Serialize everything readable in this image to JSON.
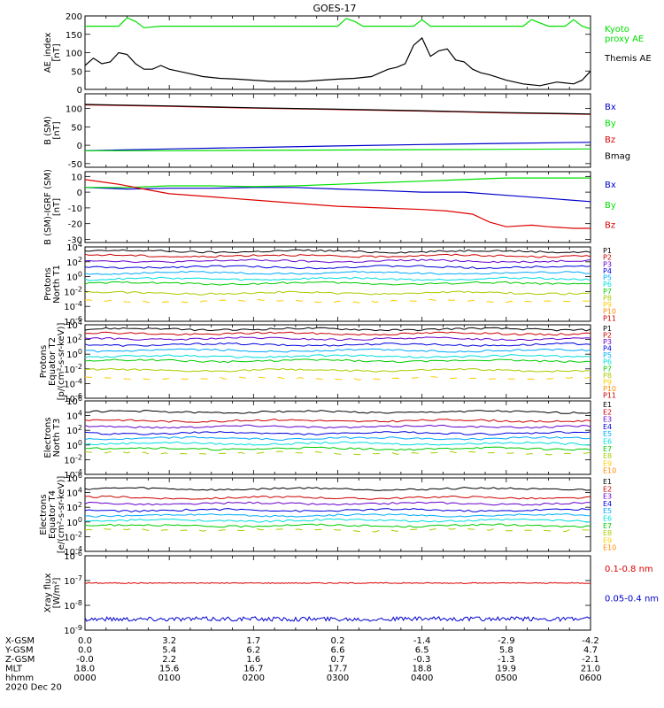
{
  "title": "GOES-17",
  "colors": {
    "black": "#000000",
    "green": "#00e000",
    "blue": "#0000cc",
    "red": "#dd0000",
    "levels": [
      "#000000",
      "#cc0000",
      "#6600cc",
      "#0000dd",
      "#00aaff",
      "#00dddd",
      "#00cc00",
      "#aacc00",
      "#ffcc00",
      "#ff8800",
      "#cc0000"
    ]
  },
  "chart_data": [
    {
      "type": "line",
      "id": "ae",
      "ylabel": "AE_index\n[nT]",
      "ylim": [
        0,
        200
      ],
      "yscale": "linear",
      "yticks": [
        "200",
        "150",
        "100",
        "50",
        "0"
      ],
      "legend": [
        {
          "label": "Kyoto\nproxy AE",
          "color": "#00e000"
        },
        {
          "label": "Themis AE",
          "color": "#000000"
        }
      ],
      "series": [
        {
          "name": "Kyoto proxy AE",
          "color": "#00e000",
          "x": [
            0,
            0.2,
            0.4,
            0.5,
            0.6,
            0.7,
            0.9,
            1.0,
            1.2,
            1.4,
            1.6,
            1.8,
            2.0,
            2.2,
            2.4,
            2.6,
            2.8,
            3.0,
            3.1,
            3.2,
            3.3,
            3.5,
            3.7,
            3.9,
            4.0,
            4.1,
            4.2,
            4.4,
            4.6,
            4.8,
            5.0,
            5.2,
            5.3,
            5.5,
            5.7,
            5.8,
            5.9,
            6.0
          ],
          "y": [
            172,
            172,
            172,
            195,
            185,
            168,
            172,
            172,
            172,
            172,
            172,
            172,
            172,
            172,
            172,
            172,
            172,
            172,
            193,
            185,
            172,
            172,
            172,
            172,
            190,
            172,
            172,
            172,
            172,
            172,
            172,
            172,
            190,
            172,
            172,
            190,
            172,
            165
          ]
        },
        {
          "name": "Themis AE",
          "color": "#000000",
          "x": [
            0,
            0.1,
            0.2,
            0.3,
            0.4,
            0.5,
            0.6,
            0.7,
            0.8,
            0.9,
            1.0,
            1.2,
            1.4,
            1.6,
            1.8,
            2.0,
            2.2,
            2.4,
            2.6,
            2.8,
            3.0,
            3.2,
            3.4,
            3.5,
            3.6,
            3.7,
            3.8,
            3.9,
            4.0,
            4.1,
            4.2,
            4.3,
            4.4,
            4.5,
            4.6,
            4.7,
            4.8,
            5.0,
            5.2,
            5.4,
            5.6,
            5.8,
            5.9,
            6.0
          ],
          "y": [
            65,
            85,
            70,
            75,
            100,
            95,
            70,
            55,
            55,
            65,
            55,
            45,
            35,
            30,
            28,
            25,
            22,
            22,
            22,
            25,
            28,
            30,
            35,
            45,
            55,
            60,
            70,
            120,
            140,
            90,
            105,
            110,
            80,
            75,
            55,
            45,
            40,
            25,
            15,
            10,
            20,
            15,
            25,
            50
          ]
        }
      ]
    },
    {
      "type": "line",
      "id": "bsm",
      "ylabel": "B (SM)\n[nT]",
      "ylim": [
        -60,
        140
      ],
      "yscale": "linear",
      "yticks": [
        "100",
        "50",
        "0",
        "-50"
      ],
      "legend": [
        {
          "label": "Bx",
          "color": "#0000cc"
        },
        {
          "label": "By",
          "color": "#00e000"
        },
        {
          "label": "Bz",
          "color": "#dd0000"
        },
        {
          "label": "Bmag",
          "color": "#000000"
        }
      ],
      "series": [
        {
          "name": "Bx",
          "color": "#0000cc",
          "x": [
            0,
            1,
            2,
            3,
            4,
            5,
            6
          ],
          "y": [
            -15,
            -10,
            -6,
            -2,
            2,
            5,
            8
          ]
        },
        {
          "name": "By",
          "color": "#00e000",
          "x": [
            0,
            1,
            2,
            3,
            4,
            5,
            6
          ],
          "y": [
            -15,
            -15,
            -14,
            -13,
            -12,
            -11,
            -10
          ]
        },
        {
          "name": "Bz",
          "color": "#dd0000",
          "x": [
            0,
            1,
            2,
            3,
            4,
            5,
            6
          ],
          "y": [
            110,
            106,
            101,
            97,
            93,
            88,
            84
          ]
        },
        {
          "name": "Bmag",
          "color": "#000000",
          "x": [
            0,
            1,
            2,
            3,
            4,
            5,
            6
          ],
          "y": [
            111,
            107,
            102,
            98,
            94,
            89,
            85
          ]
        }
      ]
    },
    {
      "type": "line",
      "id": "bigrf",
      "ylabel": "B (SM)-IGRF (SM)\n[nT]",
      "ylim": [
        -32,
        13
      ],
      "yscale": "linear",
      "yticks": [
        "10",
        "0",
        "-10",
        "-20",
        "-30"
      ],
      "legend": [
        {
          "label": "Bx",
          "color": "#0000cc"
        },
        {
          "label": "By",
          "color": "#00e000"
        },
        {
          "label": "Bz",
          "color": "#dd0000"
        }
      ],
      "series": [
        {
          "name": "Bx",
          "color": "#0000cc",
          "x": [
            0,
            0.5,
            1,
            1.5,
            2,
            2.5,
            3,
            3.5,
            4,
            4.5,
            5,
            5.5,
            6
          ],
          "y": [
            3,
            2,
            2.5,
            2.5,
            3,
            3,
            2,
            1,
            0,
            0,
            -2,
            -4,
            -6
          ]
        },
        {
          "name": "By",
          "color": "#00e000",
          "x": [
            0,
            0.5,
            1,
            1.5,
            2,
            2.5,
            3,
            3.5,
            4,
            4.5,
            5,
            5.5,
            6
          ],
          "y": [
            3,
            3,
            4,
            4,
            3.5,
            4,
            5,
            6,
            7,
            8,
            9,
            9,
            9
          ]
        },
        {
          "name": "Bz",
          "color": "#dd0000",
          "x": [
            0,
            0.4,
            0.7,
            1,
            1.5,
            2,
            2.5,
            3,
            3.5,
            4,
            4.3,
            4.6,
            4.8,
            5,
            5.3,
            5.5,
            5.8,
            6
          ],
          "y": [
            8,
            5,
            2,
            -1,
            -3,
            -5,
            -7,
            -9,
            -10,
            -11,
            -12,
            -14,
            -19,
            -22,
            -21,
            -22,
            -23,
            -23
          ]
        }
      ]
    },
    {
      "type": "line",
      "id": "protons_t1",
      "ylabel": "Protons\nNorth T1",
      "yscale": "log",
      "ylim_exp": [
        -6,
        4
      ],
      "yticks": [
        "10^4",
        "10^2",
        "10^0",
        "10^-2",
        "10^-4",
        "10^-6"
      ],
      "legend": [
        "P1",
        "P2",
        "P3",
        "P4",
        "P5",
        "P6",
        "P7",
        "P8",
        "P9",
        "P10",
        "P11"
      ],
      "levels_exp": [
        3.4,
        2.8,
        2.1,
        1.3,
        0.5,
        -0.3,
        -0.9,
        -2.2,
        -3.3
      ]
    },
    {
      "type": "line",
      "id": "protons_t2",
      "ylabel": "Protons\nEquator T2\n[p/(cm²-s-sr-keV)]",
      "yscale": "log",
      "ylim_exp": [
        -6,
        4
      ],
      "yticks": [
        "10^4",
        "10^2",
        "10^0",
        "10^-2",
        "10^-4",
        "10^-6"
      ],
      "legend": [
        "P1",
        "P2",
        "P3",
        "P4",
        "P5",
        "P6",
        "P7",
        "P8",
        "P9",
        "P10",
        "P11"
      ],
      "levels_exp": [
        3.4,
        2.8,
        2.1,
        1.3,
        0.5,
        -0.3,
        -0.9,
        -2.2,
        -3.3
      ]
    },
    {
      "type": "line",
      "id": "electrons_t3",
      "ylabel": "Electrons\nNorth T3",
      "yscale": "log",
      "ylim_exp": [
        -4,
        6
      ],
      "yticks": [
        "10^6",
        "10^4",
        "10^2",
        "10^0",
        "10^-2",
        "10^-4"
      ],
      "legend": [
        "E1",
        "E2",
        "E3",
        "E4",
        "E5",
        "E6",
        "E7",
        "E8",
        "E9",
        "E10"
      ],
      "levels_exp": [
        4.5,
        3.3,
        2.5,
        1.6,
        0.9,
        0.2,
        -0.5,
        -1.1
      ]
    },
    {
      "type": "line",
      "id": "electrons_t4",
      "ylabel": "Electrons\nEquator T4\n[e/(cm²-s-sr-keV)]",
      "yscale": "log",
      "ylim_exp": [
        -4,
        6
      ],
      "yticks": [
        "10^6",
        "10^4",
        "10^2",
        "10^0",
        "10^-2",
        "10^-4"
      ],
      "legend": [
        "E1",
        "E2",
        "E3",
        "E4",
        "E5",
        "E6",
        "E7",
        "E8",
        "E9",
        "E10"
      ],
      "levels_exp": [
        4.5,
        3.3,
        2.5,
        1.6,
        0.9,
        0.2,
        -0.5,
        -1.1
      ]
    },
    {
      "type": "line",
      "id": "xray",
      "ylabel": "Xray flux\n[W/m²]",
      "yscale": "log",
      "ylim_exp": [
        -9,
        -6
      ],
      "yticks": [
        "10^-6",
        "10^-7",
        "10^-8",
        "10^-9"
      ],
      "legend": [
        {
          "label": "0.1-0.8 nm",
          "color": "#dd0000"
        },
        {
          "label": "0.05-0.4 nm",
          "color": "#0000cc"
        }
      ],
      "levels_exp": [
        -7.1,
        -8.55
      ]
    }
  ],
  "xaxis": {
    "rows": [
      {
        "label": "X-GSM",
        "values": [
          "0.0",
          "3.2",
          "1.7",
          "0.2",
          "-1.4",
          "-2.9",
          "-4.2"
        ]
      },
      {
        "label": "Y-GSM",
        "values": [
          "0.0",
          "5.4",
          "6.2",
          "6.6",
          "6.5",
          "5.8",
          "4.7"
        ]
      },
      {
        "label": "Z-GSM",
        "values": [
          "-0.0",
          "2.2",
          "1.6",
          "0.7",
          "-0.3",
          "-1.3",
          "-2.1"
        ]
      },
      {
        "label": "MLT",
        "values": [
          "18.0",
          "15.6",
          "16.7",
          "17.7",
          "18.8",
          "19.9",
          "21.0"
        ]
      },
      {
        "label": "hhmm",
        "values": [
          "0000",
          "0100",
          "0200",
          "0300",
          "0400",
          "0500",
          "0600"
        ]
      }
    ],
    "date": "2020 Dec 20"
  }
}
